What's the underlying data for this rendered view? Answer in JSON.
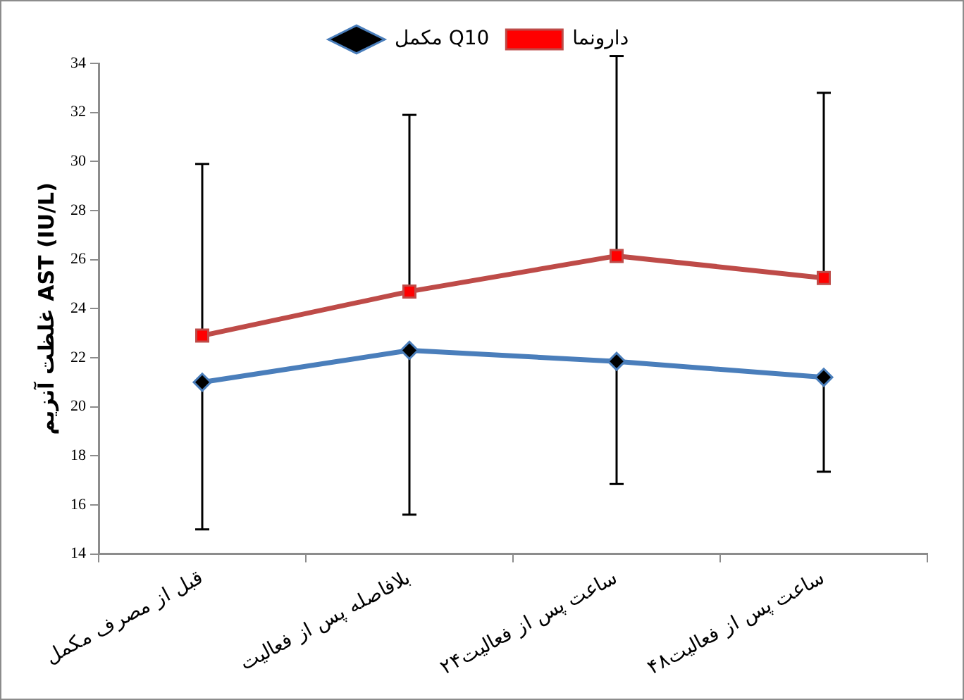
{
  "chart_data": {
    "type": "line",
    "ylabel": "غلظت آنزیم AST (IU/L)",
    "categories": [
      "قبل از مصرف مکمل",
      "بلافاصله پس از فعالیت",
      "۲۴ساعت پس از فعالیت",
      "۴۸ساعت پس از فعالیت"
    ],
    "series": [
      {
        "name": "مکمل Q10",
        "color": "#4a7ebb",
        "marker": "diamond",
        "values": [
          21.0,
          22.3,
          21.85,
          21.2
        ],
        "errors": [
          [
            15.0,
            21.0
          ],
          [
            15.6,
            22.3
          ],
          [
            16.85,
            21.85
          ],
          [
            17.35,
            21.2
          ]
        ]
      },
      {
        "name": "دارونما",
        "color": "#be4b48",
        "marker": "square",
        "values": [
          22.9,
          24.7,
          26.15,
          25.25
        ],
        "errors": [
          [
            22.9,
            29.9
          ],
          [
            24.7,
            31.9
          ],
          [
            26.15,
            34.3
          ],
          [
            25.25,
            32.8
          ]
        ]
      }
    ],
    "ylim": [
      14,
      34
    ],
    "yticks": [
      14,
      16,
      18,
      20,
      22,
      24,
      26,
      28,
      30,
      32,
      34
    ],
    "grid": false,
    "legend": "top"
  }
}
